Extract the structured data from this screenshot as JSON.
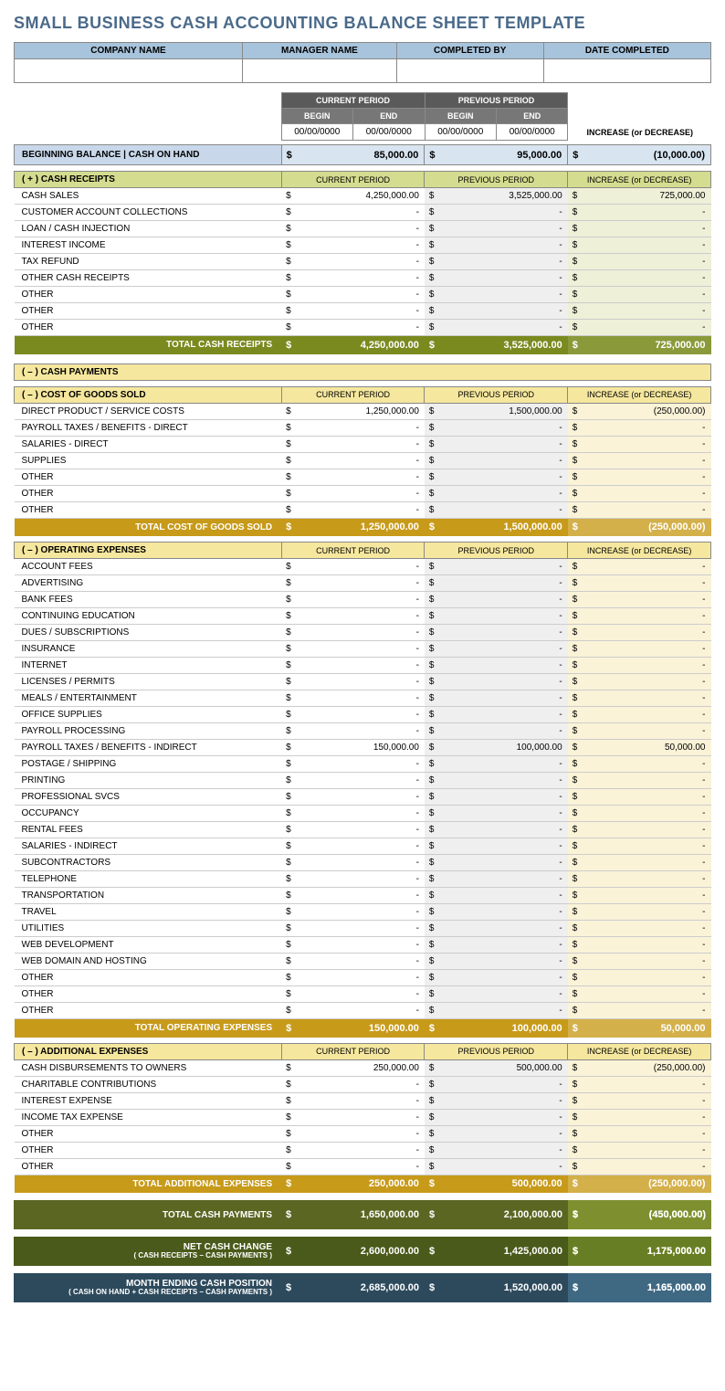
{
  "title": "SMALL BUSINESS CASH ACCOUNTING BALANCE SHEET TEMPLATE",
  "header": {
    "company": "COMPANY NAME",
    "manager": "MANAGER NAME",
    "completed_by": "COMPLETED BY",
    "date_completed": "DATE COMPLETED"
  },
  "periods": {
    "cur": "CURRENT PERIOD",
    "prev": "PREVIOUS PERIOD",
    "begin": "BEGIN",
    "end": "END",
    "cur_begin": "00/00/0000",
    "cur_end": "00/00/0000",
    "prev_begin": "00/00/0000",
    "prev_end": "00/00/0000",
    "incdec": "INCREASE (or DECREASE)"
  },
  "beginning": {
    "label": "BEGINNING BALANCE  |  CASH ON HAND",
    "cur": "85,000.00",
    "prev": "95,000.00",
    "diff": "(10,000.00)"
  },
  "receipts": {
    "header": "( + )  CASH RECEIPTS",
    "rows": [
      {
        "l": "CASH SALES",
        "c": "4,250,000.00",
        "p": "3,525,000.00",
        "d": "725,000.00"
      },
      {
        "l": "CUSTOMER ACCOUNT COLLECTIONS",
        "c": "-",
        "p": "-",
        "d": "-"
      },
      {
        "l": "LOAN / CASH INJECTION",
        "c": "-",
        "p": "-",
        "d": "-"
      },
      {
        "l": "INTEREST INCOME",
        "c": "-",
        "p": "-",
        "d": "-"
      },
      {
        "l": "TAX REFUND",
        "c": "-",
        "p": "-",
        "d": "-"
      },
      {
        "l": "OTHER CASH RECEIPTS",
        "c": "-",
        "p": "-",
        "d": "-"
      },
      {
        "l": "OTHER",
        "c": "-",
        "p": "-",
        "d": "-"
      },
      {
        "l": "OTHER",
        "c": "-",
        "p": "-",
        "d": "-"
      },
      {
        "l": "OTHER",
        "c": "-",
        "p": "-",
        "d": "-"
      }
    ],
    "total": {
      "l": "TOTAL CASH RECEIPTS",
      "c": "4,250,000.00",
      "p": "3,525,000.00",
      "d": "725,000.00"
    }
  },
  "payments_header": "( – )  CASH PAYMENTS",
  "cogs": {
    "header": "( – )  COST OF GOODS SOLD",
    "rows": [
      {
        "l": "DIRECT PRODUCT / SERVICE COSTS",
        "c": "1,250,000.00",
        "p": "1,500,000.00",
        "d": "(250,000.00)"
      },
      {
        "l": "PAYROLL TAXES / BENEFITS - DIRECT",
        "c": "-",
        "p": "-",
        "d": "-"
      },
      {
        "l": "SALARIES - DIRECT",
        "c": "-",
        "p": "-",
        "d": "-"
      },
      {
        "l": "SUPPLIES",
        "c": "-",
        "p": "-",
        "d": "-"
      },
      {
        "l": "OTHER",
        "c": "-",
        "p": "-",
        "d": "-"
      },
      {
        "l": "OTHER",
        "c": "-",
        "p": "-",
        "d": "-"
      },
      {
        "l": "OTHER",
        "c": "-",
        "p": "-",
        "d": "-"
      }
    ],
    "total": {
      "l": "TOTAL COST OF GOODS SOLD",
      "c": "1,250,000.00",
      "p": "1,500,000.00",
      "d": "(250,000.00)"
    }
  },
  "opex": {
    "header": "( – )  OPERATING EXPENSES",
    "rows": [
      {
        "l": "ACCOUNT FEES",
        "c": "-",
        "p": "-",
        "d": "-"
      },
      {
        "l": "ADVERTISING",
        "c": "-",
        "p": "-",
        "d": "-"
      },
      {
        "l": "BANK FEES",
        "c": "-",
        "p": "-",
        "d": "-"
      },
      {
        "l": "CONTINUING EDUCATION",
        "c": "-",
        "p": "-",
        "d": "-"
      },
      {
        "l": "DUES / SUBSCRIPTIONS",
        "c": "-",
        "p": "-",
        "d": "-"
      },
      {
        "l": "INSURANCE",
        "c": "-",
        "p": "-",
        "d": "-"
      },
      {
        "l": "INTERNET",
        "c": "-",
        "p": "-",
        "d": "-"
      },
      {
        "l": "LICENSES / PERMITS",
        "c": "-",
        "p": "-",
        "d": "-"
      },
      {
        "l": "MEALS / ENTERTAINMENT",
        "c": "-",
        "p": "-",
        "d": "-"
      },
      {
        "l": "OFFICE SUPPLIES",
        "c": "-",
        "p": "-",
        "d": "-"
      },
      {
        "l": "PAYROLL PROCESSING",
        "c": "-",
        "p": "-",
        "d": "-"
      },
      {
        "l": "PAYROLL TAXES / BENEFITS - INDIRECT",
        "c": "150,000.00",
        "p": "100,000.00",
        "d": "50,000.00"
      },
      {
        "l": "POSTAGE / SHIPPING",
        "c": "-",
        "p": "-",
        "d": "-"
      },
      {
        "l": "PRINTING",
        "c": "-",
        "p": "-",
        "d": "-"
      },
      {
        "l": "PROFESSIONAL SVCS",
        "c": "-",
        "p": "-",
        "d": "-"
      },
      {
        "l": "OCCUPANCY",
        "c": "-",
        "p": "-",
        "d": "-"
      },
      {
        "l": "RENTAL FEES",
        "c": "-",
        "p": "-",
        "d": "-"
      },
      {
        "l": "SALARIES - INDIRECT",
        "c": "-",
        "p": "-",
        "d": "-"
      },
      {
        "l": "SUBCONTRACTORS",
        "c": "-",
        "p": "-",
        "d": "-"
      },
      {
        "l": "TELEPHONE",
        "c": "-",
        "p": "-",
        "d": "-"
      },
      {
        "l": "TRANSPORTATION",
        "c": "-",
        "p": "-",
        "d": "-"
      },
      {
        "l": "TRAVEL",
        "c": "-",
        "p": "-",
        "d": "-"
      },
      {
        "l": "UTILITIES",
        "c": "-",
        "p": "-",
        "d": "-"
      },
      {
        "l": "WEB DEVELOPMENT",
        "c": "-",
        "p": "-",
        "d": "-"
      },
      {
        "l": "WEB DOMAIN AND HOSTING",
        "c": "-",
        "p": "-",
        "d": "-"
      },
      {
        "l": "OTHER",
        "c": "-",
        "p": "-",
        "d": "-"
      },
      {
        "l": "OTHER",
        "c": "-",
        "p": "-",
        "d": "-"
      },
      {
        "l": "OTHER",
        "c": "-",
        "p": "-",
        "d": "-"
      }
    ],
    "total": {
      "l": "TOTAL OPERATING EXPENSES",
      "c": "150,000.00",
      "p": "100,000.00",
      "d": "50,000.00"
    }
  },
  "addl": {
    "header": "( – )  ADDITIONAL EXPENSES",
    "rows": [
      {
        "l": "CASH DISBURSEMENTS TO OWNERS",
        "c": "250,000.00",
        "p": "500,000.00",
        "d": "(250,000.00)"
      },
      {
        "l": "CHARITABLE CONTRIBUTIONS",
        "c": "-",
        "p": "-",
        "d": "-"
      },
      {
        "l": "INTEREST EXPENSE",
        "c": "-",
        "p": "-",
        "d": "-"
      },
      {
        "l": "INCOME TAX EXPENSE",
        "c": "-",
        "p": "-",
        "d": "-"
      },
      {
        "l": "OTHER",
        "c": "-",
        "p": "-",
        "d": "-"
      },
      {
        "l": "OTHER",
        "c": "-",
        "p": "-",
        "d": "-"
      },
      {
        "l": "OTHER",
        "c": "-",
        "p": "-",
        "d": "-"
      }
    ],
    "total": {
      "l": "TOTAL ADDITIONAL EXPENSES",
      "c": "250,000.00",
      "p": "500,000.00",
      "d": "(250,000.00)"
    }
  },
  "summary": {
    "tcp": {
      "l": "TOTAL CASH PAYMENTS",
      "c": "1,650,000.00",
      "p": "2,100,000.00",
      "d": "(450,000.00)"
    },
    "ncc": {
      "l": "NET CASH CHANGE",
      "s": "( CASH RECEIPTS – CASH PAYMENTS )",
      "c": "2,600,000.00",
      "p": "1,425,000.00",
      "d": "1,175,000.00"
    },
    "ecp": {
      "l": "MONTH ENDING CASH POSITION",
      "s": "( CASH ON HAND + CASH RECEIPTS – CASH PAYMENTS )",
      "c": "2,685,000.00",
      "p": "1,520,000.00",
      "d": "1,165,000.00"
    }
  }
}
